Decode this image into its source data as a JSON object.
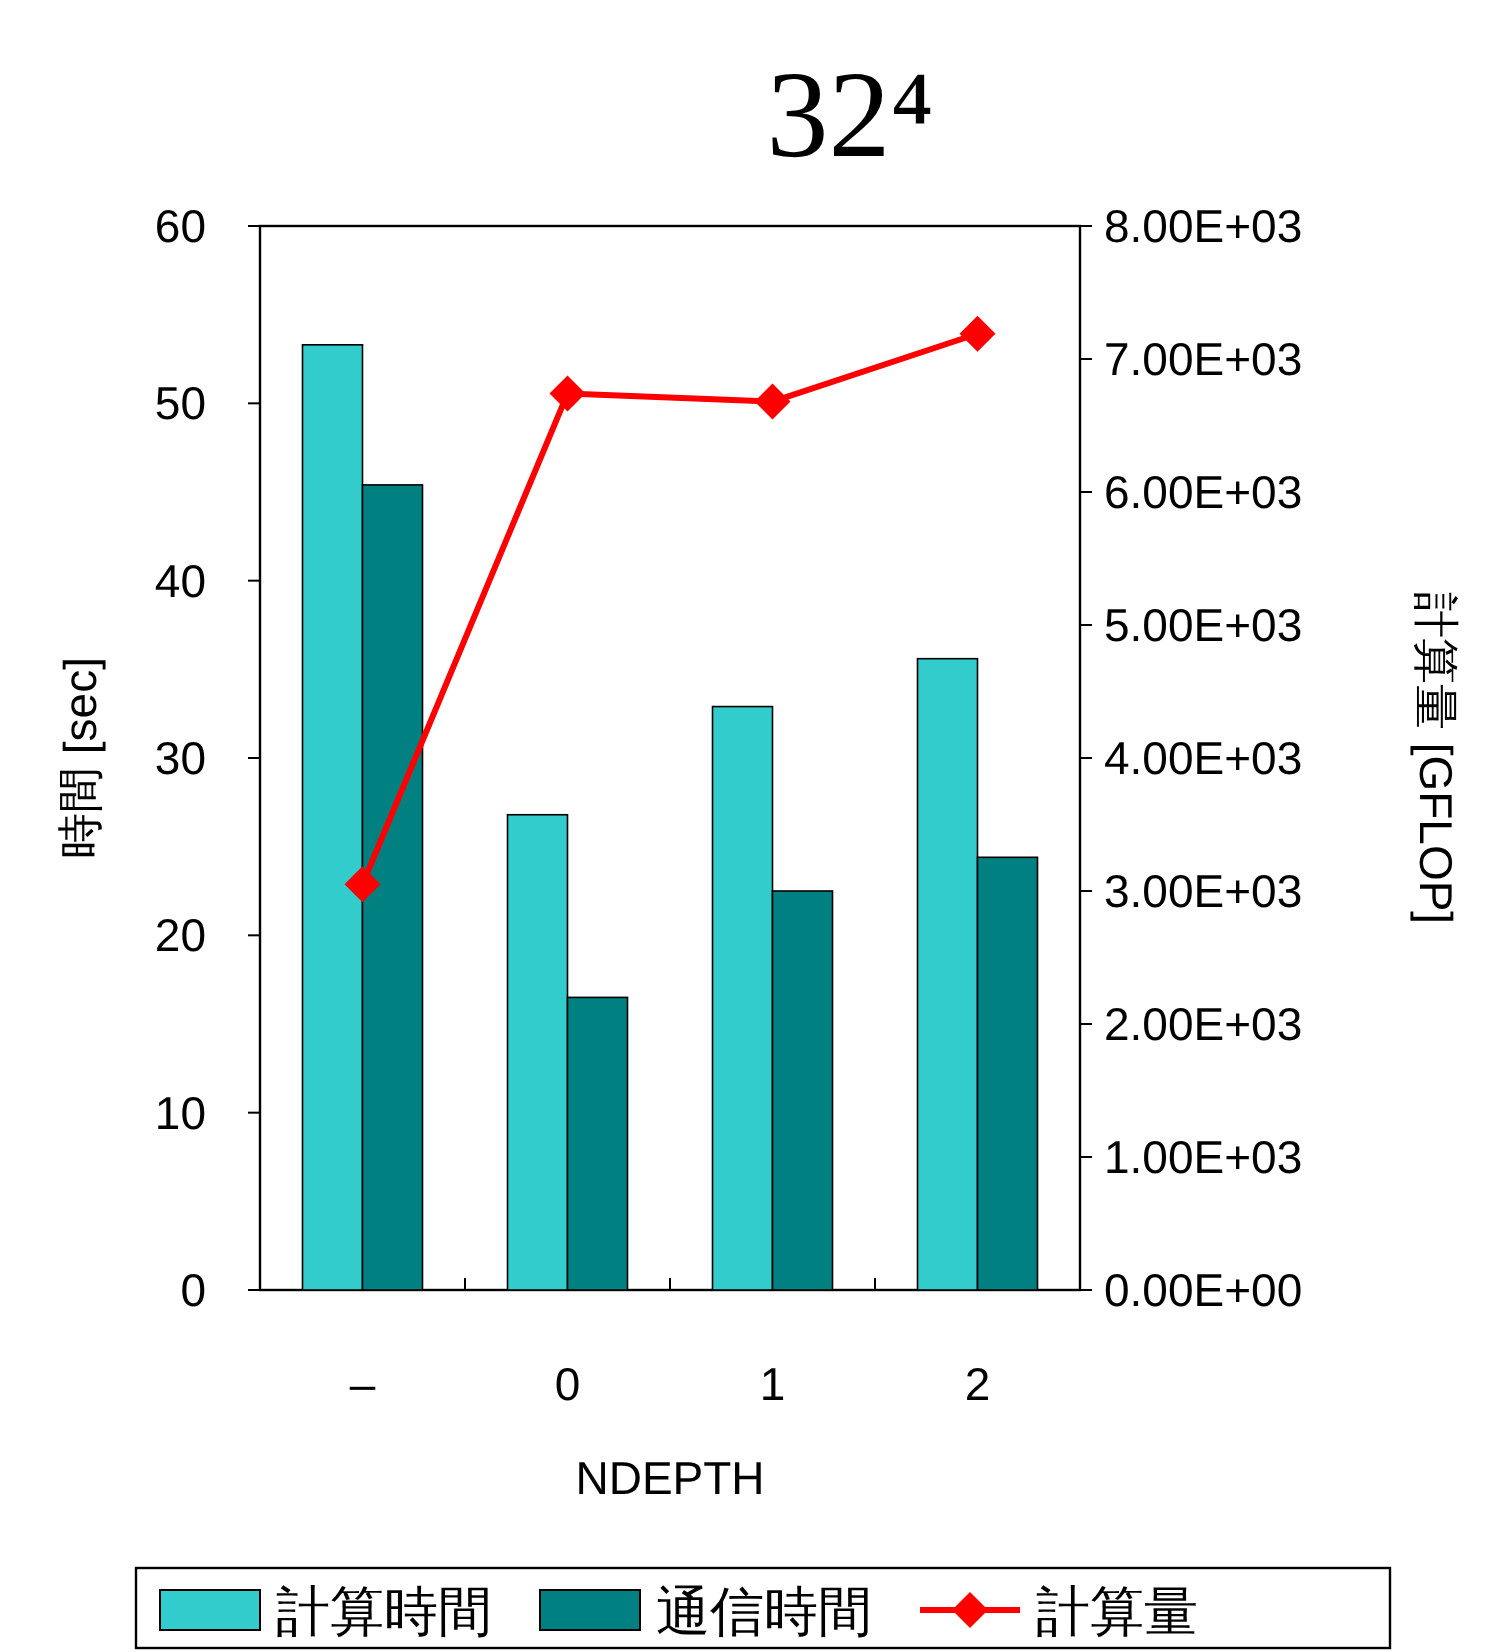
{
  "chart_data": {
    "type": "bar",
    "title": "32⁴",
    "xlabel": "NDEPTH",
    "ylabel": "時間 [sec]",
    "y2label": "計算量 [GFLOP]",
    "categories": [
      "–",
      "0",
      "1",
      "2"
    ],
    "series": [
      {
        "name": "計算時間",
        "color": "#33cccc",
        "values": [
          53.3,
          26.8,
          32.9,
          35.6
        ]
      },
      {
        "name": "通信時間",
        "color": "#008080",
        "values": [
          45.4,
          16.5,
          22.5,
          24.4
        ]
      },
      {
        "name": "計算量",
        "color": "#ff0000",
        "type": "line",
        "axis": "y2",
        "marker": "diamond",
        "values": [
          3050,
          6740,
          6680,
          7190
        ]
      }
    ],
    "ylim": [
      0,
      60
    ],
    "yticks": [
      0,
      10,
      20,
      30,
      40,
      50,
      60
    ],
    "y2lim": [
      0,
      8000
    ],
    "y2ticks": [
      {
        "value": 0,
        "label": "0.00E+00"
      },
      {
        "value": 1000,
        "label": "1.00E+03"
      },
      {
        "value": 2000,
        "label": "2.00E+03"
      },
      {
        "value": 3000,
        "label": "3.00E+03"
      },
      {
        "value": 4000,
        "label": "4.00E+03"
      },
      {
        "value": 5000,
        "label": "5.00E+03"
      },
      {
        "value": 6000,
        "label": "6.00E+03"
      },
      {
        "value": 7000,
        "label": "7.00E+03"
      },
      {
        "value": 8000,
        "label": "8.00E+03"
      }
    ],
    "grid": false,
    "legend": "bottom"
  }
}
